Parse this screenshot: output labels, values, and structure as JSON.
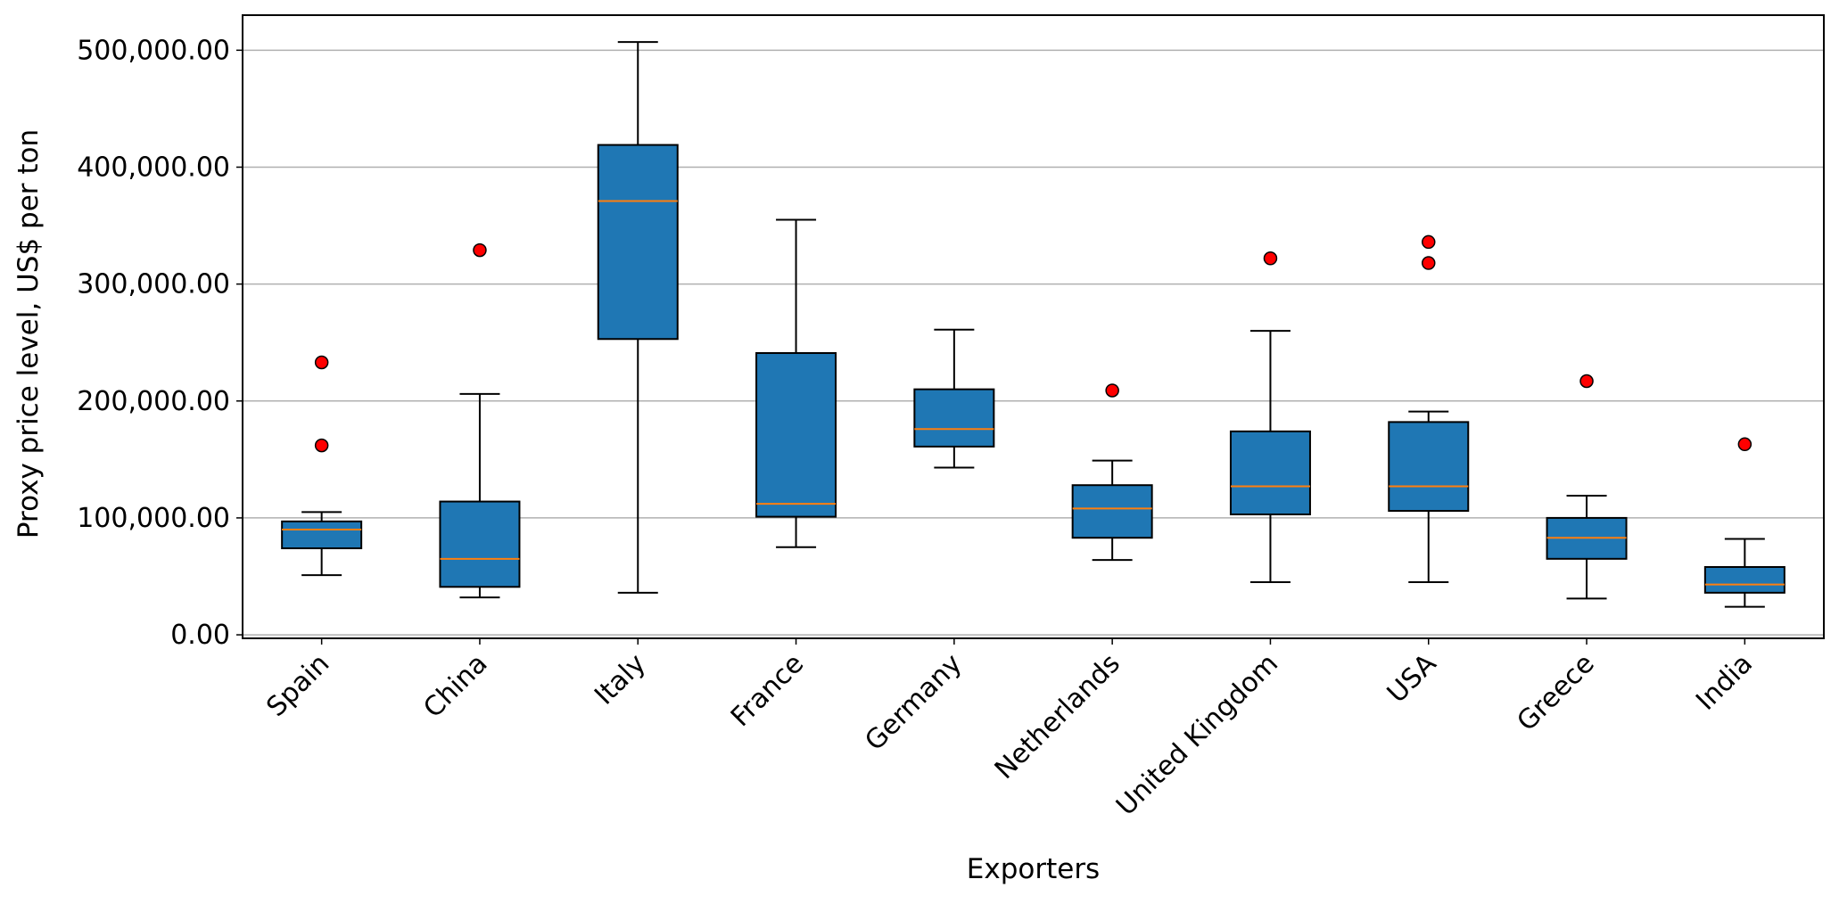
{
  "chart_data": {
    "type": "box",
    "title": "",
    "xlabel": "Exporters",
    "ylabel": "Proxy price level, US$ per ton",
    "ylim": [
      -3000,
      530000
    ],
    "y_ticks": [
      0,
      100000,
      200000,
      300000,
      400000,
      500000
    ],
    "y_tick_labels": [
      "0.00",
      "100,000.00",
      "200,000.00",
      "300,000.00",
      "400,000.00",
      "500,000.00"
    ],
    "grid": "horizontal",
    "categories": [
      "Spain",
      "China",
      "Italy",
      "France",
      "Germany",
      "Netherlands",
      "United Kingdom",
      "USA",
      "Greece",
      "India"
    ],
    "boxes": [
      {
        "label": "Spain",
        "whisker_low": 51000,
        "q1": 74000,
        "median": 90000,
        "q3": 97000,
        "whisker_high": 105000,
        "outliers": [
          233000,
          162000
        ]
      },
      {
        "label": "China",
        "whisker_low": 32000,
        "q1": 41000,
        "median": 65000,
        "q3": 114000,
        "whisker_high": 206000,
        "outliers": [
          329000
        ]
      },
      {
        "label": "Italy",
        "whisker_low": 36000,
        "q1": 253000,
        "median": 371000,
        "q3": 419000,
        "whisker_high": 507000,
        "outliers": []
      },
      {
        "label": "France",
        "whisker_low": 75000,
        "q1": 101000,
        "median": 112000,
        "q3": 241000,
        "whisker_high": 355000,
        "outliers": []
      },
      {
        "label": "Germany",
        "whisker_low": 143000,
        "q1": 161000,
        "median": 176000,
        "q3": 210000,
        "whisker_high": 261000,
        "outliers": []
      },
      {
        "label": "Netherlands",
        "whisker_low": 64000,
        "q1": 83000,
        "median": 108000,
        "q3": 128000,
        "whisker_high": 149000,
        "outliers": [
          209000
        ]
      },
      {
        "label": "United Kingdom",
        "whisker_low": 45000,
        "q1": 103000,
        "median": 127000,
        "q3": 174000,
        "whisker_high": 260000,
        "outliers": [
          322000
        ]
      },
      {
        "label": "USA",
        "whisker_low": 45000,
        "q1": 106000,
        "median": 127000,
        "q3": 182000,
        "whisker_high": 191000,
        "outliers": [
          336000,
          318000
        ]
      },
      {
        "label": "Greece",
        "whisker_low": 31000,
        "q1": 65000,
        "median": 83000,
        "q3": 100000,
        "whisker_high": 119000,
        "outliers": [
          217000
        ]
      },
      {
        "label": "India",
        "whisker_low": 24000,
        "q1": 36000,
        "median": 43000,
        "q3": 58000,
        "whisker_high": 82000,
        "outliers": [
          163000
        ]
      }
    ],
    "colors": {
      "box_fill": "#1f77b4",
      "box_edge": "#000000",
      "median": "#ff7f0e",
      "outlier_fill": "#ff0000",
      "outlier_edge": "#000000",
      "grid": "#b0b0b0"
    }
  }
}
